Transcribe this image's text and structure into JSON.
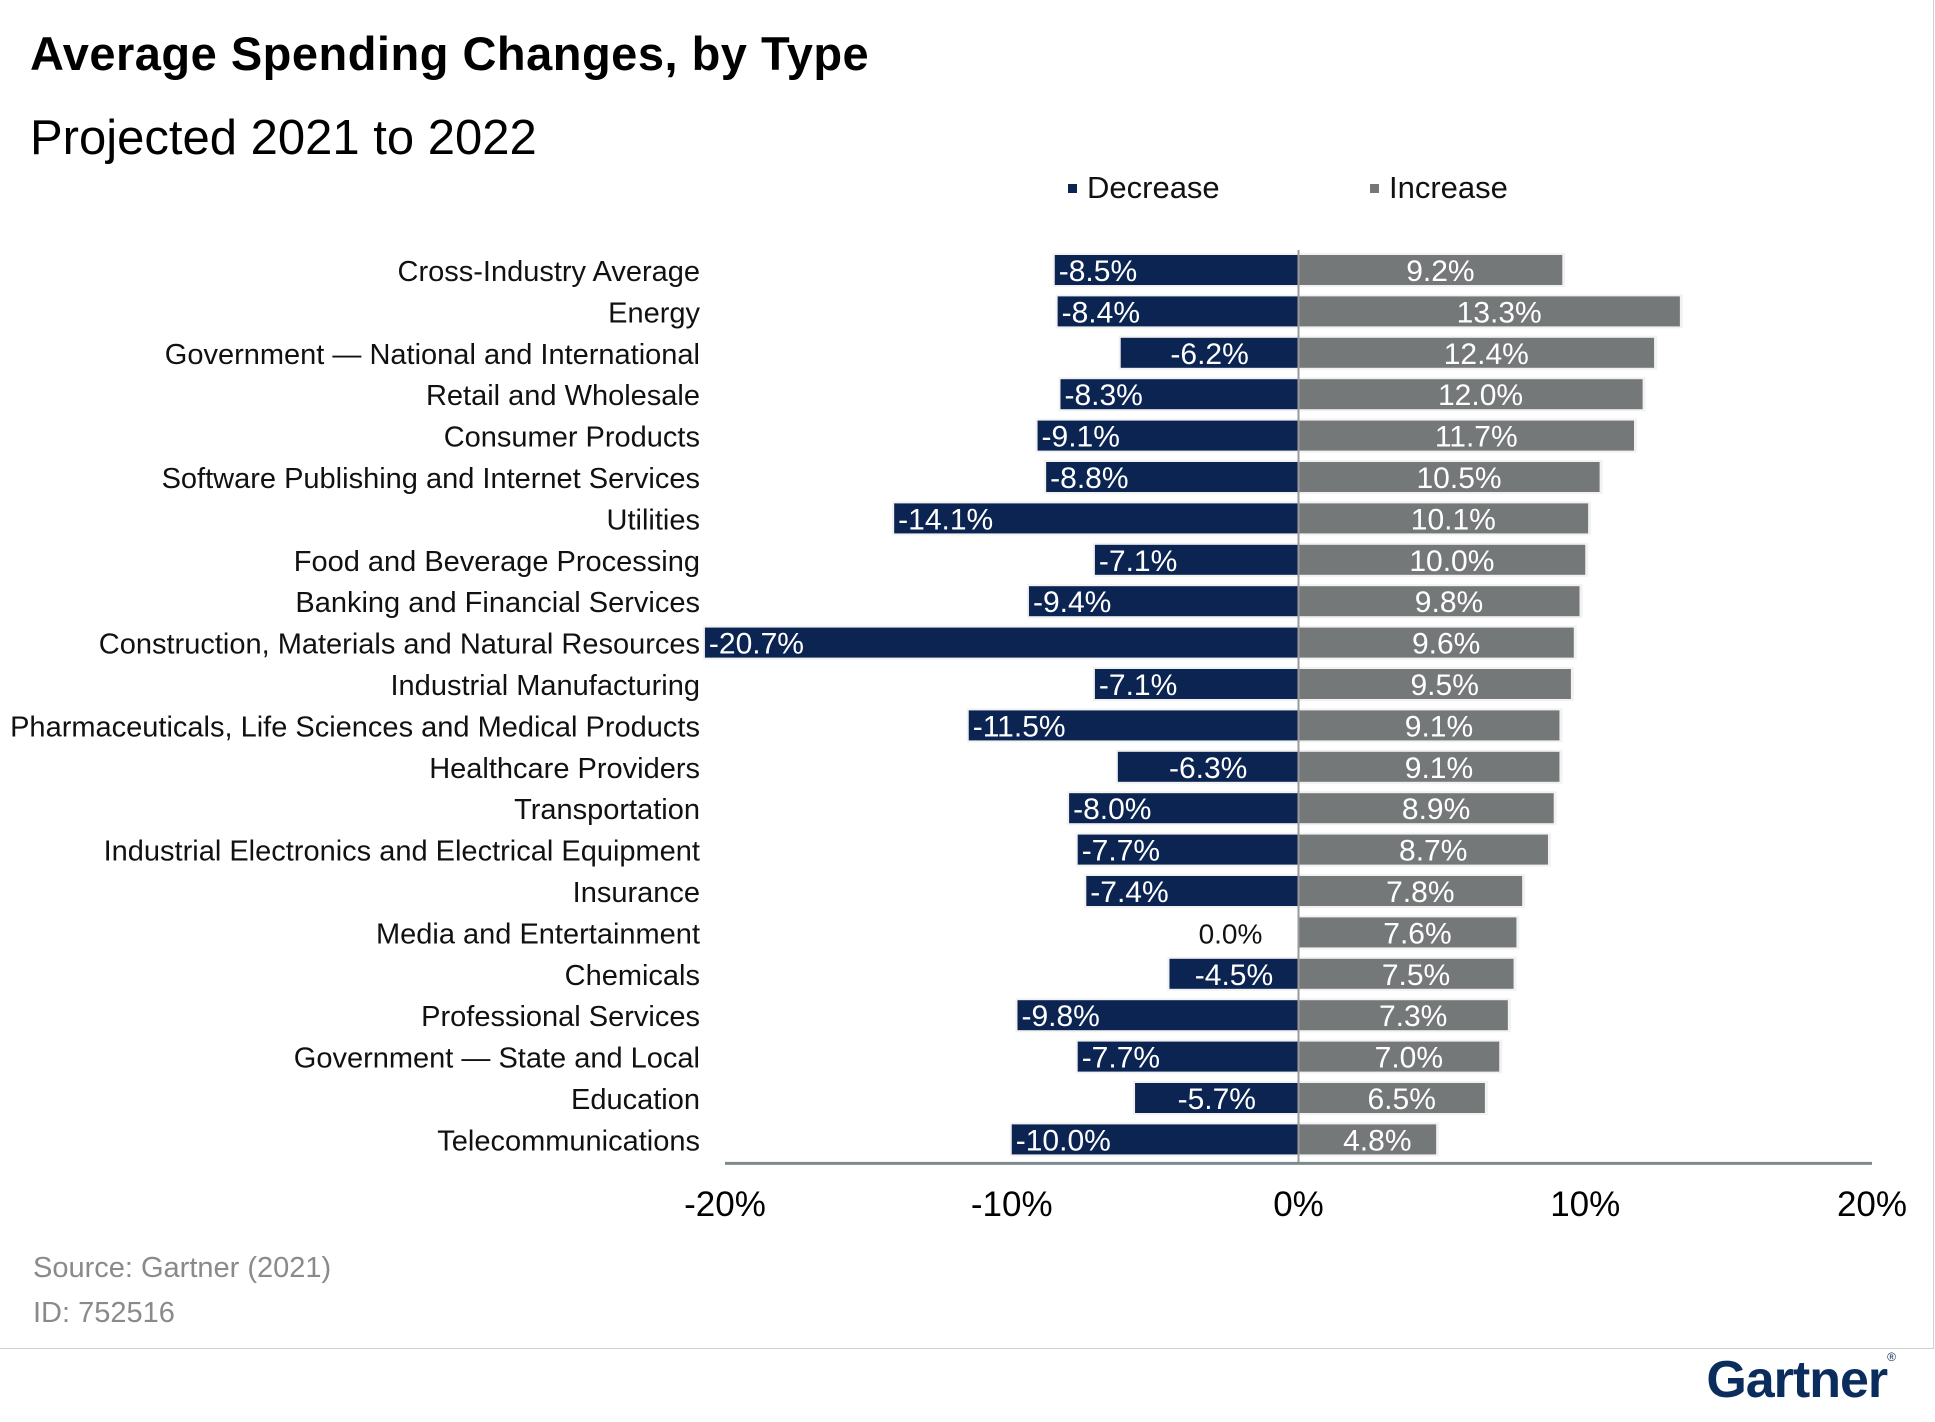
{
  "chart_data": {
    "type": "bar",
    "orientation": "horizontal-diverging",
    "title": "Average Spending Changes, by Type",
    "subtitle": "Projected 2021 to 2022",
    "categories": [
      "Cross-Industry Average",
      "Energy",
      "Government — National and International",
      "Retail and Wholesale",
      "Consumer Products",
      "Software Publishing and Internet Services",
      "Utilities",
      "Food and Beverage Processing",
      "Banking and Financial Services",
      "Construction, Materials and Natural Resources",
      "Industrial Manufacturing",
      "Pharmaceuticals, Life Sciences and Medical Products",
      "Healthcare Providers",
      "Transportation",
      "Industrial Electronics and Electrical Equipment",
      "Insurance",
      "Media and Entertainment",
      "Chemicals",
      "Professional Services",
      "Government — State and Local",
      "Education",
      "Telecommunications"
    ],
    "series": [
      {
        "name": "Decrease",
        "color": "#0b2452",
        "values": [
          -8.5,
          -8.4,
          -6.2,
          -8.3,
          -9.1,
          -8.8,
          -14.1,
          -7.1,
          -9.4,
          -20.7,
          -7.1,
          -11.5,
          -6.3,
          -8.0,
          -7.7,
          -7.4,
          0.0,
          -4.5,
          -9.8,
          -7.7,
          -5.7,
          -10.0
        ],
        "labels": [
          "-8.5%",
          "-8.4%",
          "-6.2%",
          "-8.3%",
          "-9.1%",
          "-8.8%",
          "-14.1%",
          "-7.1%",
          "-9.4%",
          "-20.7%",
          "-7.1%",
          "-11.5%",
          "-6.3%",
          "-8.0%",
          "-7.7%",
          "-7.4%",
          "0.0%",
          "-4.5%",
          "-9.8%",
          "-7.7%",
          "-5.7%",
          "-10.0%"
        ]
      },
      {
        "name": "Increase",
        "color": "#757879",
        "values": [
          9.2,
          13.3,
          12.4,
          12.0,
          11.7,
          10.5,
          10.1,
          10.0,
          9.8,
          9.6,
          9.5,
          9.1,
          9.1,
          8.9,
          8.7,
          7.8,
          7.6,
          7.5,
          7.3,
          7.0,
          6.5,
          4.8
        ],
        "labels": [
          "9.2%",
          "13.3%",
          "12.4%",
          "12.0%",
          "11.7%",
          "10.5%",
          "10.1%",
          "10.0%",
          "9.8%",
          "9.6%",
          "9.5%",
          "9.1%",
          "9.1%",
          "8.9%",
          "8.7%",
          "7.8%",
          "7.6%",
          "7.5%",
          "7.3%",
          "7.0%",
          "6.5%",
          "4.8%"
        ]
      }
    ],
    "xlim": [
      -20,
      20
    ],
    "xticks": [
      -20,
      -10,
      0,
      10,
      20
    ],
    "xtick_labels": [
      "-20%",
      "-10%",
      "0%",
      "10%",
      "20%"
    ],
    "legend_position": "top",
    "grid": false
  },
  "legend": {
    "decrease": "Decrease",
    "increase": "Increase"
  },
  "footer": {
    "source": "Source: Gartner (2021)",
    "id": "ID: 752516",
    "logo": "Gartner"
  }
}
